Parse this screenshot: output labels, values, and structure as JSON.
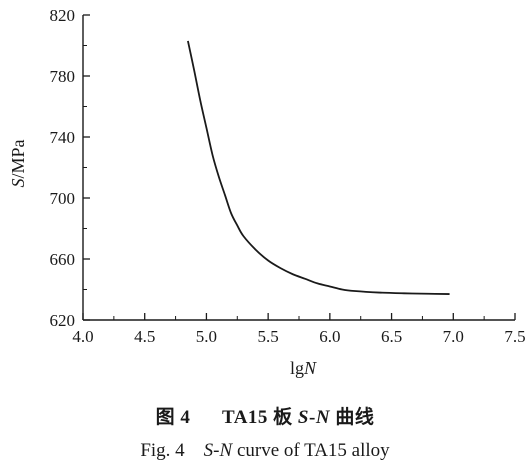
{
  "chart_data": {
    "type": "line",
    "xlabel": "lgN",
    "ylabel": "S/MPa",
    "xlim": [
      4.0,
      7.5
    ],
    "ylim": [
      620,
      820
    ],
    "xticks": [
      "4.0",
      "4.5",
      "5.0",
      "5.5",
      "6.0",
      "6.5",
      "7.0",
      "7.5"
    ],
    "yticks": [
      "620",
      "660",
      "700",
      "740",
      "780",
      "820"
    ],
    "grid": false,
    "legend": "none",
    "series": [
      {
        "x": [
          4.85,
          4.9,
          4.95,
          5.0,
          5.05,
          5.1,
          5.15,
          5.2,
          5.25,
          5.3,
          5.4,
          5.5,
          5.6,
          5.7,
          5.8,
          5.9,
          6.0,
          6.1,
          6.2,
          6.4,
          6.6,
          6.8,
          6.97
        ],
        "y": [
          803,
          784,
          764,
          746,
          728,
          714,
          702,
          690,
          682,
          675,
          666,
          659,
          654,
          650,
          647,
          644,
          642,
          640,
          639,
          638,
          637.5,
          637.2,
          637
        ]
      }
    ],
    "line_color": "#1a1a1a"
  },
  "caption": {
    "cn_figure": "图 4",
    "cn_prefix": "TA15 板 ",
    "cn_s": "S",
    "cn_dash": "-",
    "cn_n": "N",
    "cn_suffix": " 曲线",
    "en_figure": "Fig. 4",
    "en_s": "S",
    "en_dash": "-",
    "en_n": "N",
    "en_suffix": " curve of TA15 alloy"
  }
}
